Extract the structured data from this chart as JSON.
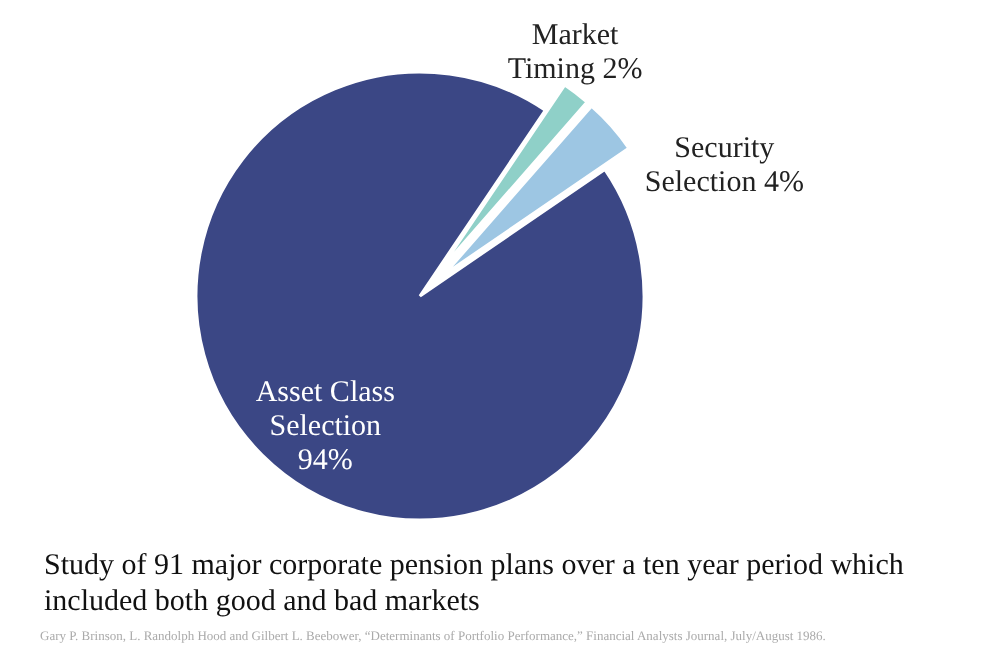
{
  "chart_data": {
    "type": "pie",
    "categories": [
      "Market Timing",
      "Security Selection",
      "Asset Class Selection"
    ],
    "values": [
      2,
      4,
      94
    ],
    "value_labels": [
      "2%",
      "4%",
      "94%"
    ],
    "colors": [
      "#8fd0c8",
      "#9dc6e3",
      "#3b4785"
    ],
    "annotations": [
      "Study of 91 major corporate pension plans over a ten year period which included both good and bad markets",
      "Gary P. Brinson, L. Randolph Hood and Gilbert L. Beebower, “Determinants of Portfolio Performance,” Financial Analysts Journal, July/August 1986."
    ]
  }
}
